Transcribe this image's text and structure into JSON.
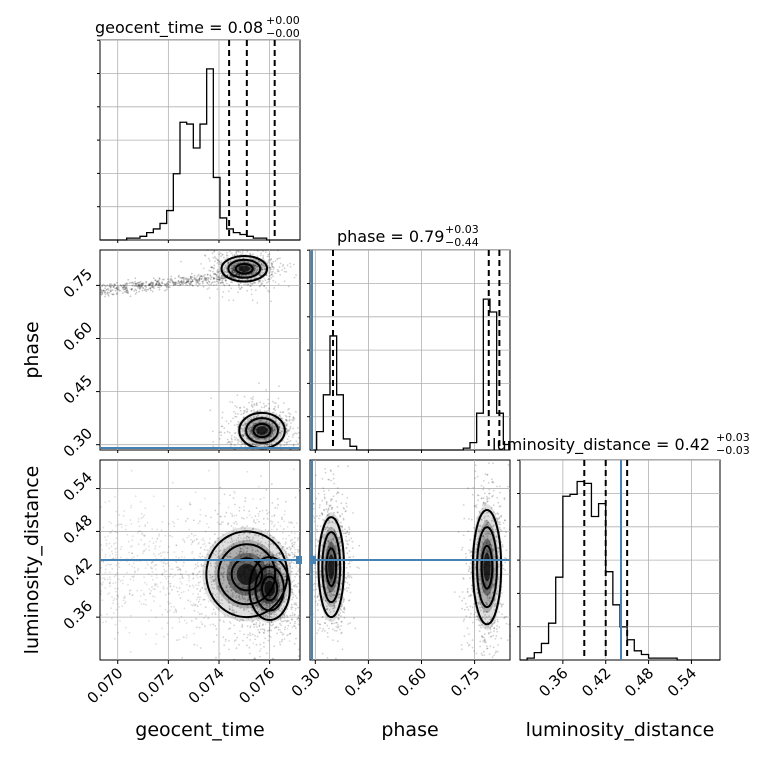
{
  "figure": {
    "type": "corner-plot"
  },
  "chart_data": {
    "type": "corner",
    "parameters": [
      {
        "name": "geocent_time",
        "label": "geocent_time",
        "range": [
          0.0693,
          0.0772
        ],
        "ticks": [
          "0.070",
          "0.072",
          "0.074",
          "0.076"
        ],
        "tick_values": [
          0.07,
          0.072,
          0.074,
          0.076
        ],
        "title_main": "geocent_time = 0.08",
        "title_sup": "+0.00",
        "title_sub": "−0.00",
        "quantiles": [
          0.0744,
          0.0751,
          0.0762
        ],
        "truth": null,
        "hist": [
          0,
          0,
          0,
          0,
          0.01,
          0.01,
          0.02,
          0.04,
          0.06,
          0.09,
          0.16,
          0.36,
          0.64,
          0.63,
          0.5,
          0.63,
          0.93,
          0.34,
          0.12,
          0.06,
          0.04,
          0.03,
          0.02,
          0.01,
          0.01,
          0,
          0,
          0,
          0,
          0
        ]
      },
      {
        "name": "phase",
        "label": "phase",
        "range": [
          0.285,
          0.85
        ],
        "ticks": [
          "0.30",
          "0.45",
          "0.60",
          "0.75"
        ],
        "tick_values": [
          0.3,
          0.45,
          0.6,
          0.75
        ],
        "title_main": "phase = 0.79",
        "title_sup": "+0.03",
        "title_sub": "−0.44",
        "quantiles": [
          0.35,
          0.79,
          0.82
        ],
        "truth": 0.29,
        "hist": [
          0,
          0.1,
          0.3,
          0.62,
          0.3,
          0.06,
          0.02,
          0,
          0,
          0,
          0,
          0,
          0,
          0,
          0,
          0,
          0,
          0,
          0,
          0,
          0,
          0,
          0,
          0.01,
          0.04,
          0.2,
          0.82,
          0.75,
          0.2,
          0.03
        ]
      },
      {
        "name": "luminosity_distance",
        "label": "luminosity_distance",
        "range": [
          0.3,
          0.58
        ],
        "ticks": [
          "0.36",
          "0.42",
          "0.48",
          "0.54"
        ],
        "tick_values": [
          0.36,
          0.42,
          0.48,
          0.54
        ],
        "title_main": "luminosity_distance = 0.42",
        "title_sup": "+0.03",
        "title_sub": "−0.03",
        "quantiles": [
          0.39,
          0.42,
          0.45
        ],
        "truth": 0.451,
        "hist": [
          0,
          0.01,
          0.04,
          0.09,
          0.2,
          0.45,
          0.89,
          0.9,
          0.97,
          0.96,
          0.78,
          0.85,
          0.48,
          0.3,
          0.18,
          0.11,
          0.05,
          0.03,
          0.01,
          0.01,
          0.01,
          0.01,
          0.0,
          0.0,
          0,
          0,
          0,
          0
        ]
      }
    ],
    "pairs": [
      {
        "x": "geocent_time",
        "y": "phase",
        "clusters": [
          {
            "cx": 0.075,
            "cy": 0.797,
            "sx": 0.00045,
            "sy": 0.018
          },
          {
            "cx": 0.0757,
            "cy": 0.34,
            "sx": 0.00045,
            "sy": 0.025
          }
        ]
      },
      {
        "x": "geocent_time",
        "y": "luminosity_distance",
        "clusters": [
          {
            "cx": 0.0751,
            "cy": 0.42,
            "sx": 0.0008,
            "sy": 0.03
          },
          {
            "cx": 0.076,
            "cy": 0.4,
            "sx": 0.0004,
            "sy": 0.022
          }
        ]
      },
      {
        "x": "phase",
        "y": "luminosity_distance",
        "clusters": [
          {
            "cx": 0.345,
            "cy": 0.43,
            "sx": 0.018,
            "sy": 0.035
          },
          {
            "cx": 0.785,
            "cy": 0.43,
            "sx": 0.02,
            "sy": 0.04
          }
        ]
      }
    ]
  }
}
